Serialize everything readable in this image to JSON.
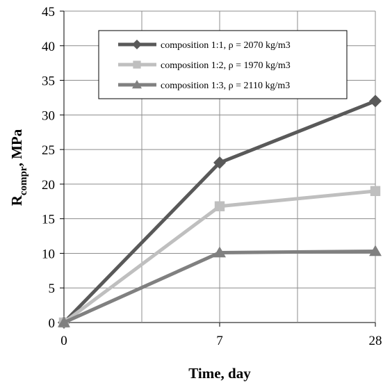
{
  "chart_data": {
    "type": "line",
    "categories": [
      "0",
      "7",
      "28"
    ],
    "xlabel": "Time, day",
    "ylabel_main": "R",
    "ylabel_sub": "compr",
    "ylabel_rest": ", MPa",
    "ylim": [
      0,
      45
    ],
    "yticks": [
      "0",
      "5",
      "10",
      "15",
      "20",
      "25",
      "30",
      "35",
      "40",
      "45"
    ],
    "grid": true,
    "legend_placement": "top-right",
    "series": [
      {
        "name": "composition 1:1, ρ = 2070 kg/m3",
        "values": [
          0,
          23.1,
          32.0
        ],
        "color": "#595959",
        "marker": "diamond"
      },
      {
        "name": "composition 1:2, ρ = 1970 kg/m3",
        "values": [
          0,
          16.8,
          19.0
        ],
        "color": "#bfbfbf",
        "marker": "square"
      },
      {
        "name": "composition 1:3, ρ = 2110 kg/m3",
        "values": [
          0,
          10.1,
          10.3
        ],
        "color": "#808080",
        "marker": "triangle"
      }
    ]
  }
}
